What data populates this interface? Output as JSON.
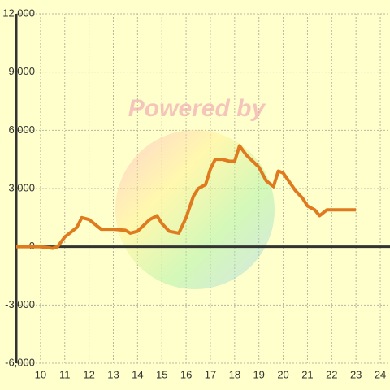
{
  "chart_data": {
    "type": "line",
    "watermark": "Powered by",
    "x": [
      9,
      10,
      10.5,
      10.7,
      11,
      11.5,
      11.7,
      12,
      12.5,
      13,
      13.5,
      13.7,
      14,
      14.5,
      14.8,
      15,
      15.3,
      15.7,
      16,
      16.3,
      16.5,
      16.8,
      17,
      17.2,
      17.5,
      17.8,
      18,
      18.2,
      18.5,
      19,
      19.3,
      19.6,
      19.8,
      20,
      20.5,
      20.8,
      21,
      21.3,
      21.5,
      21.8,
      22,
      23
    ],
    "series": [
      {
        "color": "#e07a1f",
        "values": [
          0,
          0,
          -80,
          0,
          500,
          1000,
          1500,
          1400,
          900,
          900,
          850,
          700,
          800,
          1400,
          1600,
          1200,
          800,
          700,
          1500,
          2600,
          3000,
          3200,
          4000,
          4500,
          4500,
          4400,
          4400,
          5200,
          4700,
          4100,
          3400,
          3100,
          3900,
          3800,
          2900,
          2500,
          2100,
          1900,
          1600,
          1900,
          1900,
          1900
        ]
      }
    ],
    "xlim": [
      9,
      24.4
    ],
    "xticks": [
      10,
      11,
      12,
      13,
      14,
      15,
      16,
      17,
      18,
      19,
      20,
      21,
      22,
      23,
      24
    ],
    "ylim": [
      -6000,
      12000
    ],
    "yticks": [
      {
        "value": -6000,
        "label": "-6,000"
      },
      {
        "value": -3000,
        "label": "-3,000"
      },
      0,
      {
        "value": 3000,
        "label": "3,000"
      },
      {
        "value": 6000,
        "label": "6,000"
      },
      {
        "value": 9000,
        "label": "9,000"
      },
      {
        "value": 12000,
        "label": "12,000"
      }
    ],
    "grid": true
  }
}
